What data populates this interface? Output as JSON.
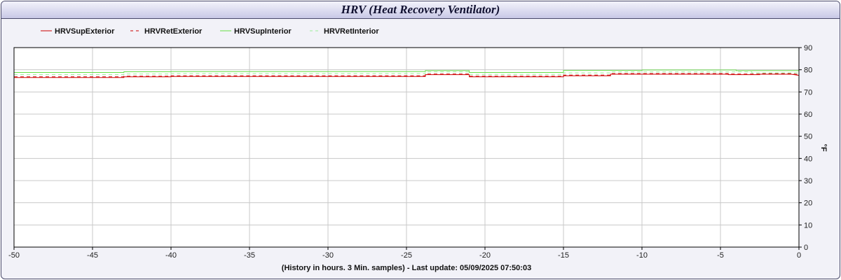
{
  "title": "HRV (Heat Recovery Ventilator)",
  "chart_data": {
    "type": "line",
    "title": "HRV (Heat Recovery Ventilator)",
    "xlabel": "(History in hours. 3 Min. samples) - Last update: 05/09/2025 07:50:03",
    "ylabel": "°F",
    "xlim": [
      -50,
      0
    ],
    "ylim": [
      0,
      90
    ],
    "xticks": [
      -50,
      -45,
      -40,
      -35,
      -30,
      -25,
      -20,
      -15,
      -10,
      -5,
      0
    ],
    "yticks": [
      0,
      10,
      20,
      30,
      40,
      50,
      60,
      70,
      80,
      90
    ],
    "grid": true,
    "legend_position": "top-left",
    "series": [
      {
        "name": "HRVSupExterior",
        "color": "#cc0000",
        "dash": "solid",
        "x": [
          -50,
          -43,
          -43,
          -40,
          -40,
          -23.8,
          -23.8,
          -21,
          -21,
          -15,
          -15,
          -12,
          -12,
          -4.5,
          -4.5,
          -2.5,
          -2.5,
          -0.5,
          0
        ],
        "y": [
          76.5,
          76.5,
          76.8,
          76.8,
          77.0,
          77.0,
          77.8,
          77.8,
          76.8,
          76.8,
          77.3,
          77.3,
          78.0,
          78.0,
          77.8,
          77.8,
          78.0,
          78.0,
          77.5
        ]
      },
      {
        "name": "HRVRetExterior",
        "color": "#cc0000",
        "dash": "dashed",
        "x": [
          -50,
          -43,
          -43,
          -40,
          -40,
          -23.8,
          -23.8,
          -21,
          -21,
          -15,
          -15,
          -12,
          -12,
          -4.5,
          -4.5,
          -2.5,
          -2.5,
          -0.5,
          0
        ],
        "y": [
          76.8,
          76.8,
          77.1,
          77.1,
          77.3,
          77.3,
          78.1,
          78.1,
          77.1,
          77.1,
          77.6,
          77.6,
          78.3,
          78.3,
          78.1,
          78.1,
          78.3,
          78.3,
          77.8
        ]
      },
      {
        "name": "HRVSupInterior",
        "color": "#66dd44",
        "dash": "solid",
        "x": [
          -50,
          -43,
          -43,
          -40,
          -40,
          -23.8,
          -23.8,
          -21,
          -21,
          -15,
          -15,
          -10,
          -10,
          -4,
          -4,
          0
        ],
        "y": [
          78.8,
          78.8,
          79.1,
          79.1,
          79.2,
          79.2,
          79.6,
          79.6,
          78.8,
          78.8,
          79.7,
          79.7,
          79.9,
          79.9,
          79.6,
          79.6
        ]
      },
      {
        "name": "HRVRetInterior",
        "color": "#99ee99",
        "dash": "dashed",
        "x": [
          -50,
          -43,
          -43,
          -40,
          -40,
          -23.8,
          -23.8,
          -21,
          -21,
          -15,
          -15,
          -12,
          -12,
          -3,
          -3,
          0
        ],
        "y": [
          77.8,
          77.8,
          78.1,
          78.1,
          78.3,
          78.3,
          79.0,
          79.0,
          77.9,
          77.9,
          78.6,
          78.6,
          79.0,
          79.0,
          78.6,
          78.6
        ]
      }
    ]
  }
}
